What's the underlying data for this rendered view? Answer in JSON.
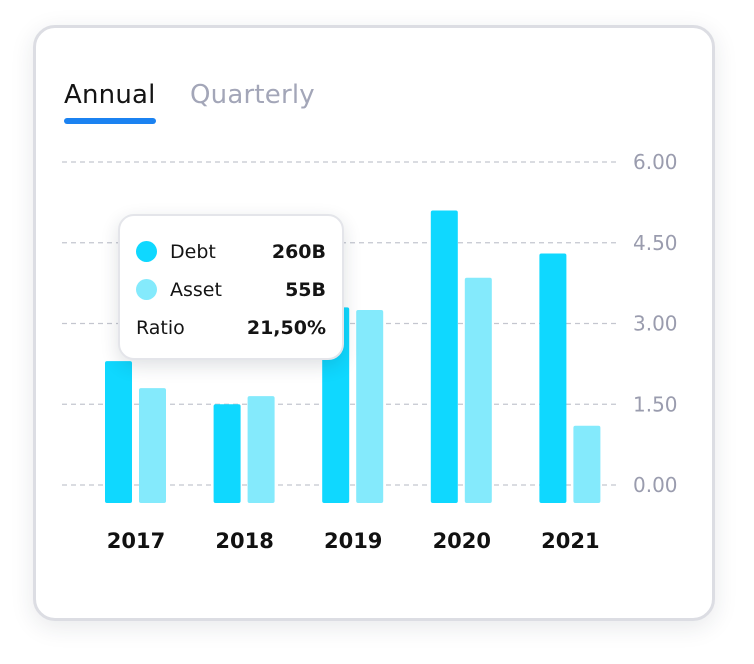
{
  "tabs": [
    {
      "label": "Annual",
      "active": true
    },
    {
      "label": "Quarterly",
      "active": false
    }
  ],
  "colors": {
    "accent": "#1b82f1",
    "debt": "#0fd8ff",
    "asset": "#84eafc",
    "grid": "#c4c6cf",
    "axis_text": "#9a9cae",
    "active_tab": "#141414",
    "inactive_tab": "#a3a6b8"
  },
  "tooltip": {
    "rows": [
      {
        "label": "Debt",
        "value": "260B",
        "color": "#0fd8ff"
      },
      {
        "label": "Asset",
        "value": "55B",
        "color": "#84eafc"
      },
      {
        "label": "Ratio",
        "value": "21,50%"
      }
    ]
  },
  "chart_data": {
    "type": "bar",
    "categories": [
      "2017",
      "2018",
      "2019",
      "2020",
      "2021"
    ],
    "series": [
      {
        "name": "Debt",
        "values": [
          2.3,
          1.5,
          3.3,
          5.1,
          4.3
        ]
      },
      {
        "name": "Asset",
        "values": [
          1.8,
          1.65,
          3.25,
          3.85,
          1.1
        ]
      }
    ],
    "ylim": [
      0,
      6
    ],
    "yticks": [
      "0.00",
      "1.50",
      "3.00",
      "4.50",
      "6.00"
    ],
    "ytick_values": [
      0,
      1.5,
      3,
      4.5,
      6
    ],
    "y_axis_position": "right",
    "grid": true
  }
}
